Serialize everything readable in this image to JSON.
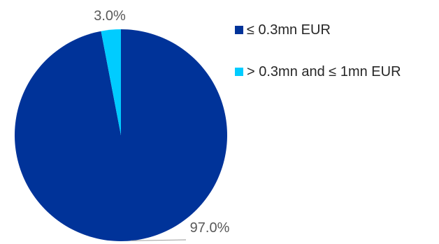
{
  "chart_data": {
    "type": "pie",
    "categories": [
      "≤ 0.3mn EUR",
      "> 0.3mn and ≤ 1mn EUR"
    ],
    "values": [
      97.0,
      3.0
    ],
    "data_labels": [
      "97.0%",
      "3.0%"
    ],
    "colors": [
      "#003399",
      "#00CCFF"
    ],
    "leader_line_color": "#A6A6A6",
    "legend_position": "right",
    "title": ""
  }
}
